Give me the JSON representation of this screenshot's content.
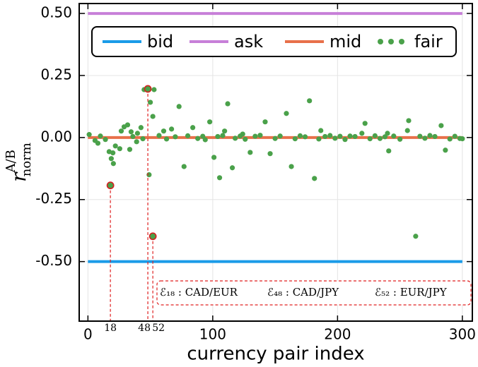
{
  "chart_data": {
    "type": "line",
    "xlabel": "currency pair index",
    "ylabel": "r",
    "ylabel_sup": "A/B",
    "ylabel_sub": "norm",
    "xlim": [
      -7,
      308
    ],
    "ylim": [
      -0.74,
      0.54
    ],
    "xticks": [
      0,
      100,
      200,
      300
    ],
    "yticks": [
      {
        "value": 0.5,
        "label": "0.50"
      },
      {
        "value": 0.25,
        "label": "0.25"
      },
      {
        "value": 0,
        "label": "0.00"
      },
      {
        "value": -0.25,
        "label": "-0.25"
      },
      {
        "value": -0.5,
        "label": "-0.50"
      }
    ],
    "grid": true,
    "legend": "upper center",
    "series": [
      {
        "name": "bid",
        "color": "#1a9be8",
        "x": [
          0,
          300
        ],
        "values": [
          -0.5,
          -0.5
        ]
      },
      {
        "name": "ask",
        "color": "#c77fd8",
        "x": [
          0,
          300
        ],
        "values": [
          0.5,
          0.5
        ]
      },
      {
        "name": "mid",
        "color": "#e8704a",
        "x": [
          0,
          300
        ],
        "values": [
          0,
          0
        ]
      },
      {
        "name": "fair",
        "color": "#4aa14a",
        "marker": "dot",
        "x": [
          18,
          48,
          52,
          53,
          45,
          49,
          52,
          50,
          73,
          77,
          97.6,
          101,
          105.5,
          112,
          115.7,
          130,
          142,
          146,
          159,
          163,
          177.5,
          181.5,
          222,
          241,
          256,
          257,
          262.6,
          283,
          286.4,
          240,
          5.7,
          8,
          17,
          18.7,
          20,
          20.4,
          22,
          25.5,
          26.7,
          29,
          31.8,
          34.6,
          33.5,
          39.7,
          42.5,
          39,
          60.7,
          67,
          84,
          109.5,
          124,
          186.6,
          219.5,
          1,
          10,
          14,
          36,
          44,
          57,
          63,
          70,
          80,
          88,
          92,
          94,
          104,
          108,
          118,
          122,
          126,
          134,
          138,
          150,
          154,
          166,
          170,
          174,
          185,
          190,
          194,
          198,
          202,
          206,
          210,
          214,
          226,
          230,
          234,
          238,
          245,
          250,
          266,
          270,
          274,
          278,
          290,
          294,
          298,
          300
        ],
        "values": [
          -0.193,
          0.196,
          -0.398,
          0.193,
          0.193,
          -0.15,
          0.085,
          0.142,
          0.125,
          -0.117,
          0.063,
          -0.08,
          -0.162,
          0.136,
          -0.122,
          -0.06,
          0.063,
          -0.065,
          0.097,
          -0.117,
          0.148,
          -0.165,
          0.057,
          -0.054,
          0.028,
          0.068,
          -0.398,
          0.048,
          -0.051,
          0.017,
          -0.012,
          -0.023,
          -0.057,
          -0.085,
          -0.062,
          -0.105,
          -0.034,
          -0.045,
          0.026,
          0.043,
          0.051,
          0.023,
          -0.048,
          0.017,
          0.04,
          -0.017,
          0.026,
          0.034,
          0.04,
          0.026,
          0.014,
          0.028,
          0.017,
          0.012,
          0.006,
          -0.008,
          0.004,
          -0.005,
          0.008,
          -0.006,
          0.003,
          0.007,
          -0.004,
          0.005,
          -0.009,
          0.004,
          0.008,
          -0.003,
          0.006,
          -0.007,
          0.005,
          0.009,
          -0.004,
          0.006,
          -0.005,
          0.007,
          0.003,
          -0.006,
          0.004,
          0.008,
          -0.003,
          0.005,
          -0.008,
          0.006,
          0.004,
          -0.005,
          0.007,
          -0.004,
          0.003,
          0.006,
          -0.007,
          0.005,
          -0.003,
          0.008,
          0.004,
          -0.006,
          0.005,
          -0.004,
          -0.005
        ]
      }
    ],
    "highlights": [
      {
        "x": 18,
        "y": -0.193,
        "label": "ℰ₁₈ : CAD/EUR"
      },
      {
        "x": 48,
        "y": 0.196,
        "label": "ℰ₄₈ : CAD/JPY"
      },
      {
        "x": 52,
        "y": -0.398,
        "label": "ℰ₅₂ : EUR/JPY"
      }
    ]
  }
}
